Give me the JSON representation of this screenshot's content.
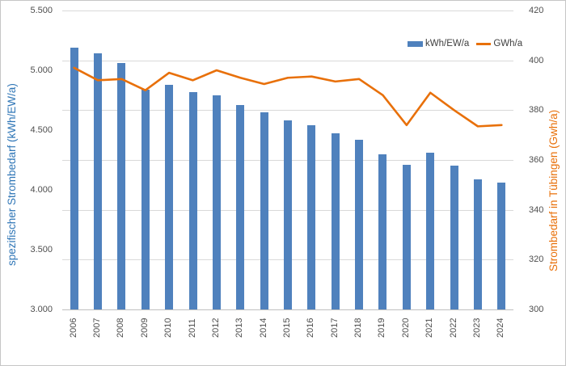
{
  "chart_data": {
    "type": "combo-bar-line",
    "title": "",
    "categories": [
      "2006",
      "2007",
      "2008",
      "2009",
      "2010",
      "2011",
      "2012",
      "2013",
      "2014",
      "2015",
      "2016",
      "2017",
      "2018",
      "2019",
      "2020",
      "2021",
      "2022",
      "2023",
      "2024"
    ],
    "series": [
      {
        "name": "kWh/EW/a",
        "type": "bar",
        "axis": "left",
        "color": "#4f81bd",
        "values": [
          5190,
          5140,
          5060,
          4840,
          4880,
          4820,
          4790,
          4710,
          4650,
          4580,
          4540,
          4470,
          4420,
          4300,
          4210,
          4310,
          4200,
          4090,
          4060
        ]
      },
      {
        "name": "GWh/a",
        "type": "line",
        "axis": "right",
        "color": "#e8700a",
        "values": [
          397,
          392,
          392.5,
          388,
          395,
          392,
          396,
          393,
          390.5,
          393,
          393.5,
          391.5,
          392.5,
          386,
          374,
          387,
          380,
          373.5,
          374
        ]
      }
    ],
    "left_axis": {
      "title": "spezifischer Strombedarf (kWh/EW/a)",
      "min": 3000,
      "max": 5500,
      "tick_labels": [
        "5.500",
        "5.000",
        "4.500",
        "4.000",
        "3.500",
        "3.000"
      ],
      "title_color": "#2e75b6"
    },
    "right_axis": {
      "title": "Strombedarf in Tübingen (Gwh/a)",
      "min": 300,
      "max": 420,
      "tick_labels": [
        "420",
        "400",
        "380",
        "360",
        "340",
        "320",
        "300"
      ],
      "title_color": "#e8700a"
    },
    "grid": true,
    "legend_position": "top-right-inside",
    "gridline_color": "#d9d9d9",
    "axis_line_color": "#bfbfbf"
  }
}
